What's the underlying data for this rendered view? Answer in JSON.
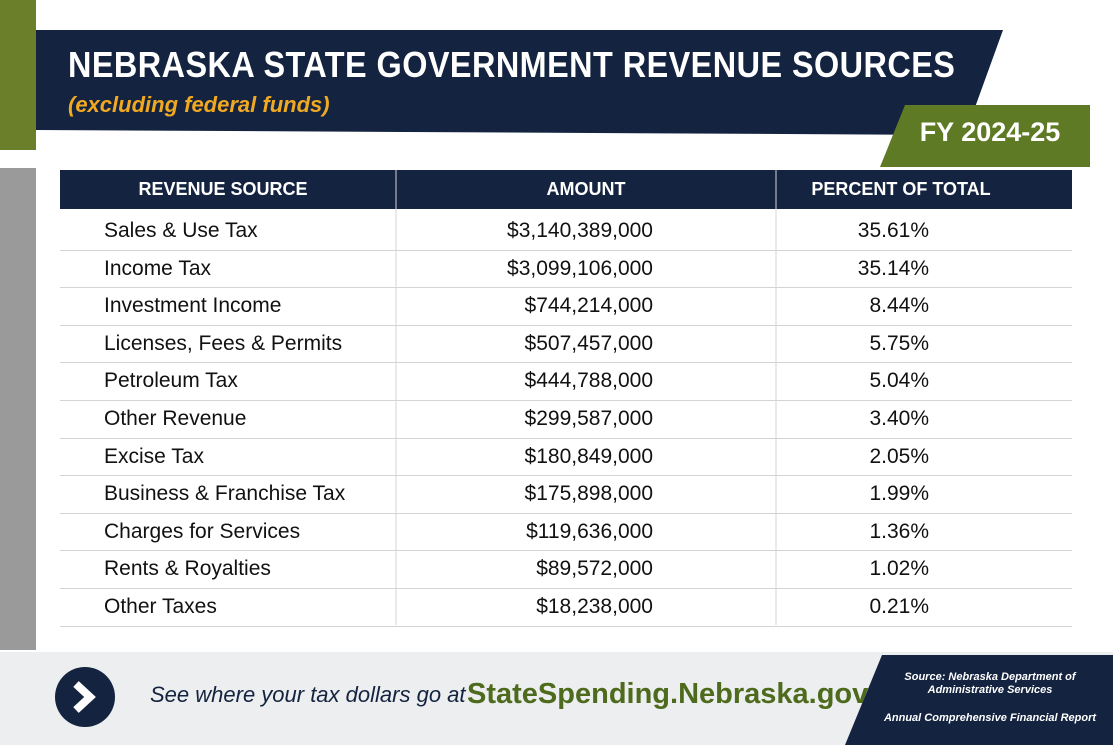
{
  "header": {
    "title": "NEBRASKA STATE GOVERNMENT REVENUE SOURCES",
    "subtitle": "(excluding federal funds)",
    "fiscal_year": "FY 2024-25"
  },
  "table": {
    "columns": [
      "REVENUE SOURCE",
      "AMOUNT",
      "PERCENT OF TOTAL"
    ],
    "rows": [
      [
        "Sales & Use Tax",
        "$3,140,389,000",
        "35.61%"
      ],
      [
        "Income Tax",
        "$3,099,106,000",
        "35.14%"
      ],
      [
        "Investment Income",
        "$744,214,000",
        "8.44%"
      ],
      [
        "Licenses, Fees & Permits",
        "$507,457,000",
        "5.75%"
      ],
      [
        "Petroleum Tax",
        "$444,788,000",
        "5.04%"
      ],
      [
        "Other Revenue",
        "$299,587,000",
        "3.40%"
      ],
      [
        "Excise Tax",
        "$180,849,000",
        "2.05%"
      ],
      [
        "Business & Franchise Tax",
        "$175,898,000",
        "1.99%"
      ],
      [
        "Charges for Services",
        "$119,636,000",
        "1.36%"
      ],
      [
        "Rents & Royalties",
        "$89,572,000",
        "1.02%"
      ],
      [
        "Other Taxes",
        "$18,238,000",
        "0.21%"
      ]
    ]
  },
  "footer": {
    "cta": "See where your tax dollars go at",
    "link": "StateSpending.Nebraska.gov",
    "source": "Source: Nebraska Department of Administrative Services",
    "report": "Annual Comprehensive Financial Report"
  }
}
